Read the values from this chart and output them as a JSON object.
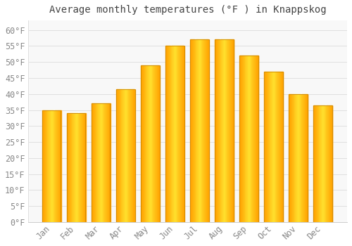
{
  "title": "Average monthly temperatures (°F ) in Knappskog",
  "months": [
    "Jan",
    "Feb",
    "Mar",
    "Apr",
    "May",
    "Jun",
    "Jul",
    "Aug",
    "Sep",
    "Oct",
    "Nov",
    "Dec"
  ],
  "values": [
    35,
    34,
    37,
    41.5,
    49,
    55,
    57,
    57,
    52,
    47,
    40,
    36.5
  ],
  "bar_color_left": "#FFA000",
  "bar_color_center": "#FFD050",
  "bar_color_right": "#FFA000",
  "bar_edge_color": "#CC8800",
  "background_color": "#FFFFFF",
  "plot_bg_color": "#F8F8F8",
  "grid_color": "#E0E0E0",
  "ylim": [
    0,
    63
  ],
  "yticks": [
    0,
    5,
    10,
    15,
    20,
    25,
    30,
    35,
    40,
    45,
    50,
    55,
    60
  ],
  "title_fontsize": 10,
  "tick_fontsize": 8.5,
  "tick_color": "#888888",
  "title_color": "#444444",
  "bar_width": 0.75
}
